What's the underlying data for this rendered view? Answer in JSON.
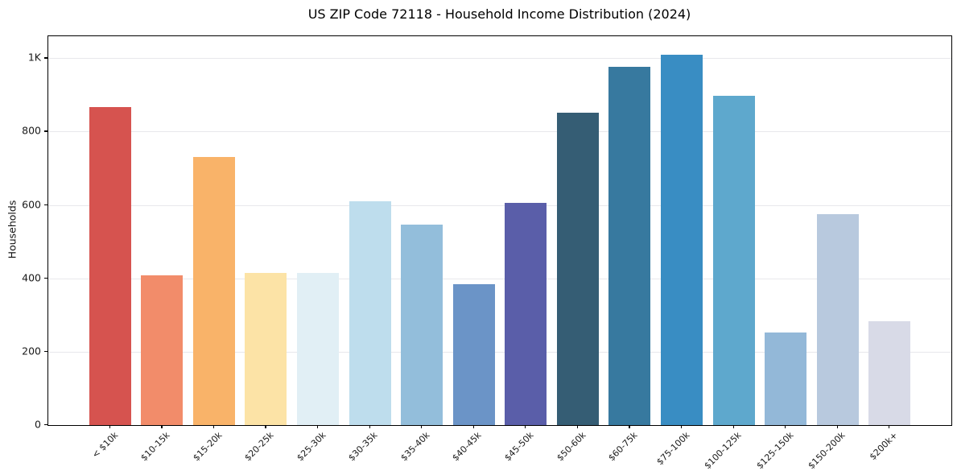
{
  "chart_data": {
    "type": "bar",
    "title": "US ZIP Code 72118 - Household Income Distribution (2024)",
    "ylabel": "Households",
    "xlabel": "",
    "categories": [
      "< $10k",
      "$10-15k",
      "$15-20k",
      "$20-25k",
      "$25-30k",
      "$30-35k",
      "$35-40k",
      "$40-45k",
      "$45-50k",
      "$50-60k",
      "$60-75k",
      "$75-100k",
      "$100-125k",
      "$125-150k",
      "$150-200k",
      "$200k+"
    ],
    "values": [
      866,
      408,
      731,
      414,
      415,
      610,
      546,
      383,
      605,
      851,
      976,
      1010,
      898,
      253,
      576,
      284
    ],
    "bar_colors": [
      "#d6534f",
      "#f28c6a",
      "#f9b369",
      "#fce3a6",
      "#e1eff5",
      "#bedded",
      "#93bedb",
      "#6b94c7",
      "#5a5ea9",
      "#355d74",
      "#37799f",
      "#398dc3",
      "#5ea8cd",
      "#93b8d8",
      "#b8c9de",
      "#d8dae7"
    ],
    "ylim": [
      0,
      1060
    ],
    "yticks": [
      {
        "value": 0,
        "label": "0"
      },
      {
        "value": 200,
        "label": "200"
      },
      {
        "value": 400,
        "label": "400"
      },
      {
        "value": 600,
        "label": "600"
      },
      {
        "value": 800,
        "label": "800"
      },
      {
        "value": 1000,
        "label": "1K"
      }
    ],
    "grid": "horizontal lines at y ticks, drawn under bars",
    "legend": "none",
    "colors": {
      "grid": "#e8e8ec",
      "spine": "#000000",
      "tick_text": "#1a1a1a",
      "title_text": "#000000",
      "background": "#ffffff"
    }
  }
}
